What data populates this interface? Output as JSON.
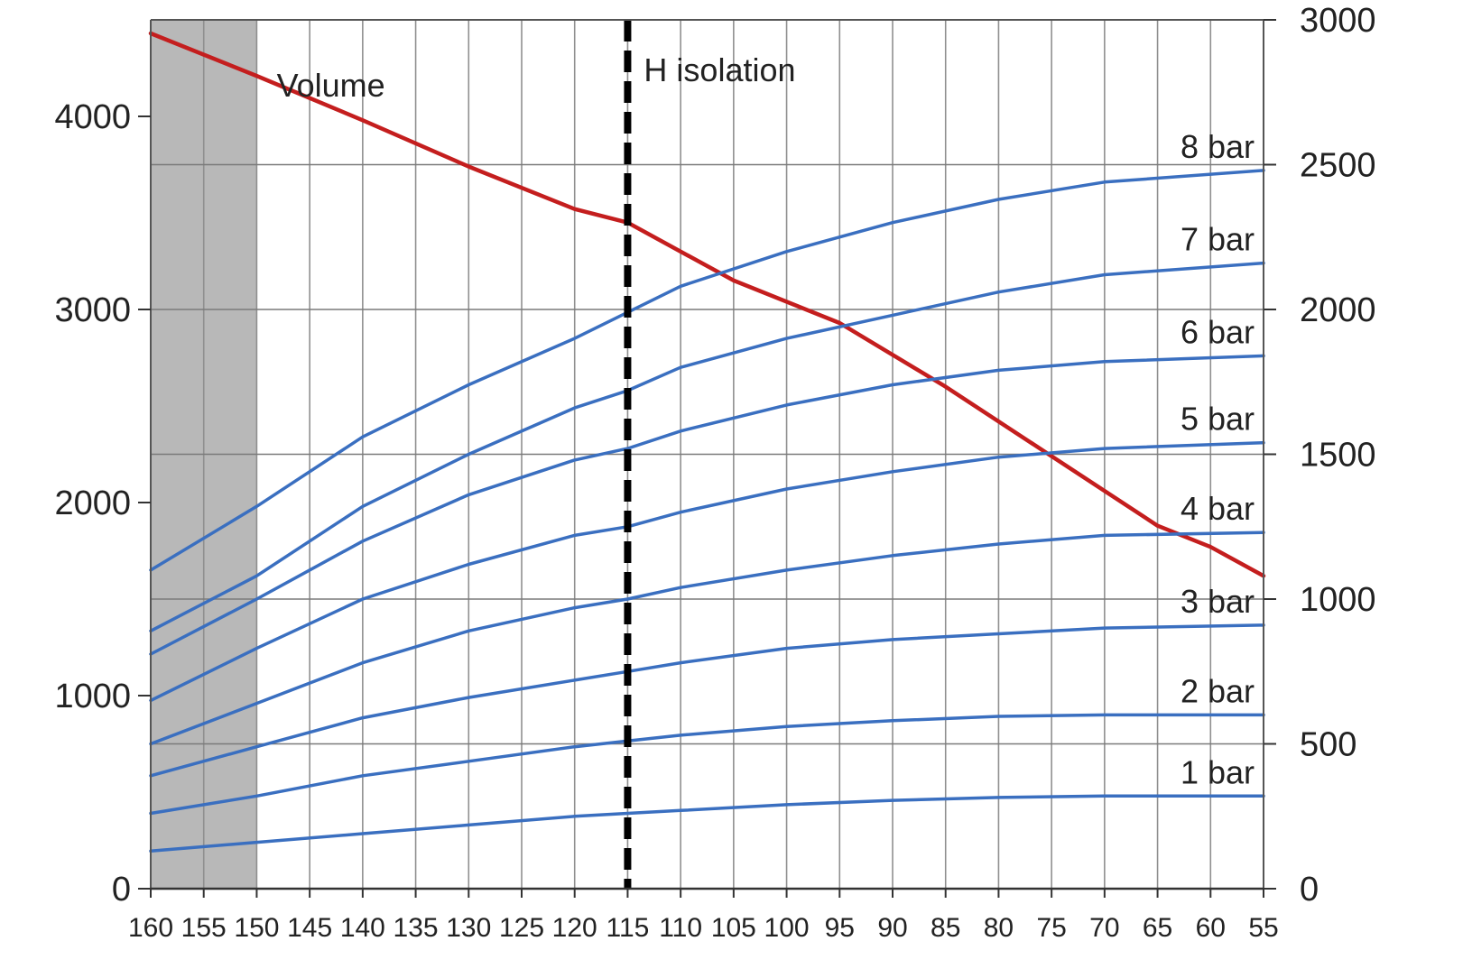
{
  "chart_data": {
    "type": "line",
    "x_axis": {
      "reversed": true,
      "range": [
        160,
        55
      ],
      "ticks": [
        160,
        155,
        150,
        145,
        140,
        135,
        130,
        125,
        120,
        115,
        110,
        105,
        100,
        95,
        90,
        85,
        80,
        75,
        70,
        65,
        60,
        55
      ]
    },
    "y_left": {
      "range": [
        0,
        4500
      ],
      "ticks": [
        0,
        1000,
        2000,
        3000,
        4000
      ],
      "gridlines": [
        750,
        1500,
        2250,
        3000,
        3750
      ]
    },
    "y_right": {
      "range": [
        0,
        3000
      ],
      "ticks": [
        0,
        500,
        1000,
        1500,
        2000,
        2500,
        3000
      ]
    },
    "grid": true,
    "shaded_region": {
      "x_from": 160,
      "x_to": 150,
      "color": "#b8b8b8"
    },
    "vertical_marker": {
      "x": 115,
      "label": "H isolation",
      "style": "dashed",
      "color": "#000000"
    },
    "volume_label": "Volume",
    "series": [
      {
        "name": "Volume",
        "axis": "left",
        "color": "#c41e1e",
        "x": [
          160,
          150,
          140,
          130,
          120,
          115,
          105,
          95,
          85,
          75,
          65,
          60,
          55
        ],
        "y": [
          4430,
          4210,
          3980,
          3740,
          3520,
          3450,
          3150,
          2930,
          2600,
          2240,
          1880,
          1770,
          1620
        ]
      },
      {
        "name": "1 bar",
        "label": "1 bar",
        "axis": "right",
        "color": "#3a6fc0",
        "x": [
          160,
          150,
          140,
          130,
          120,
          115,
          110,
          100,
          90,
          80,
          70,
          55
        ],
        "y": [
          130,
          160,
          190,
          220,
          250,
          260,
          270,
          290,
          305,
          315,
          320,
          320
        ]
      },
      {
        "name": "2 bar",
        "label": "2 bar",
        "axis": "right",
        "color": "#3a6fc0",
        "x": [
          160,
          150,
          140,
          130,
          120,
          115,
          110,
          100,
          90,
          80,
          70,
          55
        ],
        "y": [
          260,
          320,
          390,
          440,
          490,
          510,
          530,
          560,
          580,
          595,
          600,
          600
        ]
      },
      {
        "name": "3 bar",
        "label": "3 bar",
        "axis": "right",
        "color": "#3a6fc0",
        "x": [
          160,
          150,
          140,
          130,
          120,
          115,
          110,
          100,
          90,
          80,
          70,
          55
        ],
        "y": [
          390,
          490,
          590,
          660,
          720,
          750,
          780,
          830,
          860,
          880,
          900,
          910
        ]
      },
      {
        "name": "4 bar",
        "label": "4 bar",
        "axis": "right",
        "color": "#3a6fc0",
        "x": [
          160,
          150,
          140,
          130,
          120,
          115,
          110,
          100,
          90,
          80,
          70,
          55
        ],
        "y": [
          500,
          640,
          780,
          890,
          970,
          1000,
          1040,
          1100,
          1150,
          1190,
          1220,
          1230
        ]
      },
      {
        "name": "5 bar",
        "label": "5 bar",
        "axis": "right",
        "color": "#3a6fc0",
        "x": [
          160,
          150,
          140,
          130,
          120,
          115,
          110,
          100,
          90,
          80,
          70,
          55
        ],
        "y": [
          650,
          830,
          1000,
          1120,
          1220,
          1250,
          1300,
          1380,
          1440,
          1490,
          1520,
          1540
        ]
      },
      {
        "name": "6 bar",
        "label": "6 bar",
        "axis": "right",
        "color": "#3a6fc0",
        "x": [
          160,
          150,
          140,
          130,
          120,
          115,
          110,
          100,
          90,
          80,
          70,
          55
        ],
        "y": [
          810,
          1000,
          1200,
          1360,
          1480,
          1520,
          1580,
          1670,
          1740,
          1790,
          1820,
          1840
        ]
      },
      {
        "name": "7 bar",
        "label": "7 bar",
        "axis": "right",
        "color": "#3a6fc0",
        "x": [
          160,
          150,
          140,
          130,
          120,
          115,
          110,
          100,
          90,
          80,
          70,
          55
        ],
        "y": [
          890,
          1080,
          1320,
          1500,
          1660,
          1720,
          1800,
          1900,
          1980,
          2060,
          2120,
          2160
        ]
      },
      {
        "name": "8 bar",
        "label": "8 bar",
        "axis": "right",
        "color": "#3a6fc0",
        "x": [
          160,
          150,
          140,
          130,
          120,
          115,
          110,
          100,
          90,
          80,
          70,
          55
        ],
        "y": [
          1100,
          1320,
          1560,
          1740,
          1900,
          1990,
          2080,
          2200,
          2300,
          2380,
          2440,
          2480
        ]
      }
    ]
  }
}
